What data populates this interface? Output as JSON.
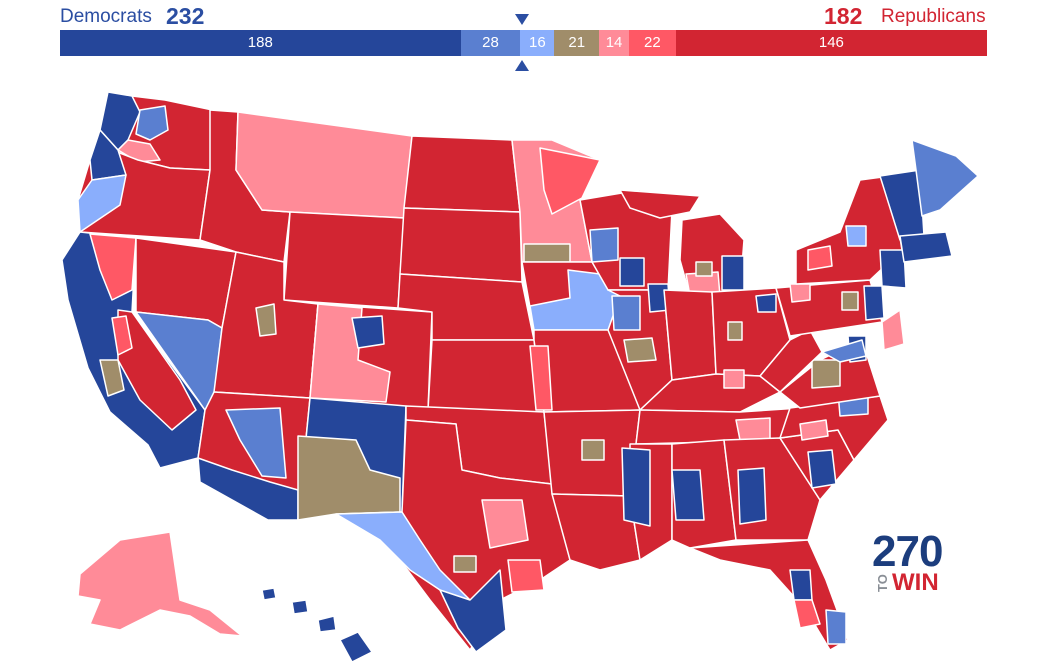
{
  "header": {
    "dem_label": "Democrats",
    "dem_total": "232",
    "rep_total": "182",
    "rep_label": "Republicans"
  },
  "seat_bar": [
    {
      "category": "safe_dem",
      "value": 188,
      "label": "188",
      "color": "#25469a"
    },
    {
      "category": "likely_dem",
      "value": 28,
      "label": "28",
      "color": "#5a7fd0"
    },
    {
      "category": "lean_dem",
      "value": 16,
      "label": "16",
      "color": "#8aaefc"
    },
    {
      "category": "tossup",
      "value": 21,
      "label": "21",
      "color": "#a08d6a"
    },
    {
      "category": "lean_rep",
      "value": 14,
      "label": "14",
      "color": "#ff8b98"
    },
    {
      "category": "likely_rep",
      "value": 22,
      "label": "22",
      "color": "#ff5865"
    },
    {
      "category": "safe_rep",
      "value": 146,
      "label": "146",
      "color": "#d22532"
    }
  ],
  "logo": {
    "number": "270",
    "to": "TO",
    "win": "WIN"
  },
  "colors": {
    "safe_dem": "#25469a",
    "likely_dem": "#5a7fd0",
    "lean_dem": "#8aaefc",
    "tossup": "#a08d6a",
    "lean_rep": "#ff8b98",
    "likely_rep": "#ff5865",
    "safe_rep": "#d22532"
  }
}
